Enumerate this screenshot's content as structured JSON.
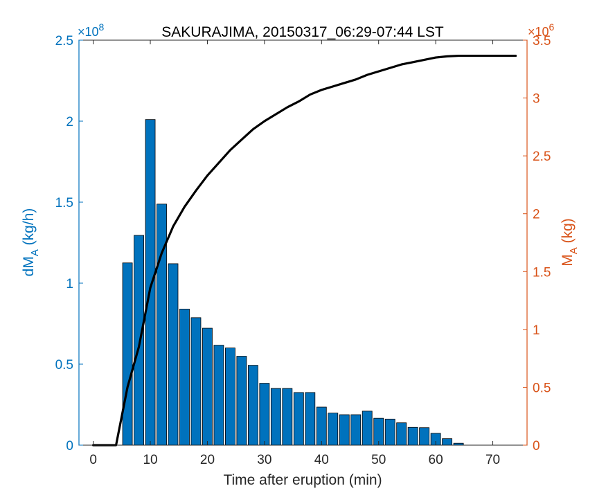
{
  "chart_data": {
    "type": "bar",
    "title": "SAKURAJIMA, 20150317_06:29-07:44 LST",
    "xlabel": "Time after eruption (min)",
    "xlim": [
      -2.5,
      76
    ],
    "x_ticks": [
      0,
      10,
      20,
      30,
      40,
      50,
      60,
      70
    ],
    "grid": false,
    "legend": "none",
    "left_axis": {
      "label_main": "dM",
      "label_sub": "A",
      "label_unit": "(kg/h)",
      "exponent_label": "×10",
      "exponent": "8",
      "ylim": [
        0,
        2.5
      ],
      "ticks": [
        0,
        0.5,
        1,
        1.5,
        2,
        2.5
      ],
      "tick_labels": [
        "0",
        "0.5",
        "1",
        "1.5",
        "2",
        "2.5"
      ],
      "color": "#0072BD"
    },
    "right_axis": {
      "label_main": "M",
      "label_sub": "A",
      "label_unit": "(kg)",
      "exponent_label": "×10",
      "exponent": "6",
      "ylim": [
        0,
        3.5
      ],
      "ticks": [
        0,
        0.5,
        1,
        1.5,
        2,
        2.5,
        3,
        3.5
      ],
      "tick_labels": [
        "0",
        "0.5",
        "1",
        "1.5",
        "2",
        "2.5",
        "3",
        "3.5"
      ],
      "color": "#D95319"
    },
    "bar_series": {
      "axis": "left",
      "color": "#0072BD",
      "edge_color": "#000000",
      "bar_width": 1.7,
      "x": [
        0,
        1,
        2,
        3,
        4,
        6,
        8,
        10,
        12,
        14,
        16,
        18,
        20,
        22,
        24,
        26,
        28,
        30,
        32,
        34,
        36,
        38,
        40,
        42,
        44,
        46,
        48,
        50,
        52,
        54,
        56,
        58,
        60,
        62,
        64
      ],
      "values": [
        0,
        0,
        0,
        0,
        0,
        1.125,
        1.295,
        2.01,
        1.488,
        1.12,
        0.84,
        0.787,
        0.722,
        0.617,
        0.6,
        0.549,
        0.493,
        0.382,
        0.35,
        0.35,
        0.325,
        0.325,
        0.235,
        0.198,
        0.188,
        0.188,
        0.21,
        0.166,
        0.161,
        0.138,
        0.11,
        0.108,
        0.073,
        0.04,
        0.012
      ]
    },
    "line_series": {
      "axis": "right",
      "color": "#000000",
      "x": [
        0,
        4,
        6,
        8,
        10,
        12,
        14,
        16,
        18,
        20,
        22,
        24,
        26,
        28,
        30,
        32,
        34,
        36,
        38,
        40,
        42,
        44,
        46,
        48,
        50,
        52,
        54,
        56,
        58,
        60,
        62,
        64,
        66,
        70,
        74
      ],
      "values": [
        0,
        0,
        0.5,
        0.85,
        1.36,
        1.66,
        1.89,
        2.06,
        2.2,
        2.33,
        2.44,
        2.55,
        2.64,
        2.73,
        2.8,
        2.86,
        2.92,
        2.97,
        3.03,
        3.07,
        3.1,
        3.13,
        3.16,
        3.2,
        3.23,
        3.26,
        3.29,
        3.31,
        3.33,
        3.35,
        3.36,
        3.365,
        3.365,
        3.365,
        3.365
      ]
    }
  }
}
